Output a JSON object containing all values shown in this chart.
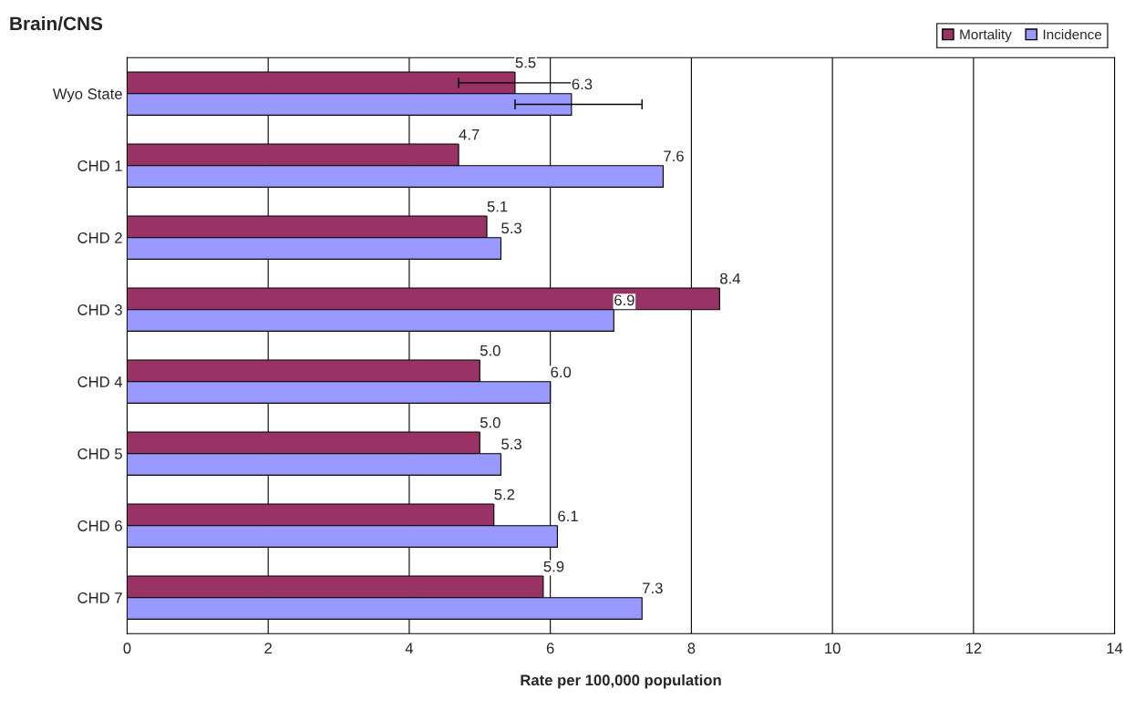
{
  "chart_data": {
    "type": "bar",
    "orientation": "horizontal",
    "title": "Brain/CNS",
    "xlabel": "Rate per 100,000 population",
    "categories": [
      "Wyo State",
      "CHD 1",
      "CHD 2",
      "CHD 3",
      "CHD 4",
      "CHD 5",
      "CHD 6",
      "CHD 7"
    ],
    "series": [
      {
        "name": "Mortality",
        "color": "#993366",
        "values": [
          5.5,
          4.7,
          5.1,
          8.4,
          5.0,
          5.0,
          5.2,
          5.9
        ],
        "value_labels": [
          "5.5",
          "4.7",
          "5.1",
          "8.4",
          "5.0",
          "5.0",
          "5.2",
          "5.9"
        ],
        "errors": [
          [
            4.7,
            6.4
          ],
          null,
          null,
          null,
          null,
          null,
          null,
          null
        ]
      },
      {
        "name": "Incidence",
        "color": "#9999ff",
        "values": [
          6.3,
          7.6,
          5.3,
          6.9,
          6.0,
          5.3,
          6.1,
          7.3
        ],
        "value_labels": [
          "6.3",
          "7.6",
          "5.3",
          "6.9",
          "6.0",
          "5.3",
          "6.1",
          "7.3"
        ],
        "errors": [
          [
            5.5,
            7.3
          ],
          null,
          null,
          null,
          null,
          null,
          null,
          null
        ]
      }
    ],
    "xlim": [
      0,
      14
    ],
    "xticks": [
      0,
      2,
      4,
      6,
      8,
      10,
      12,
      14
    ],
    "grid": "x",
    "legend": "top right"
  }
}
